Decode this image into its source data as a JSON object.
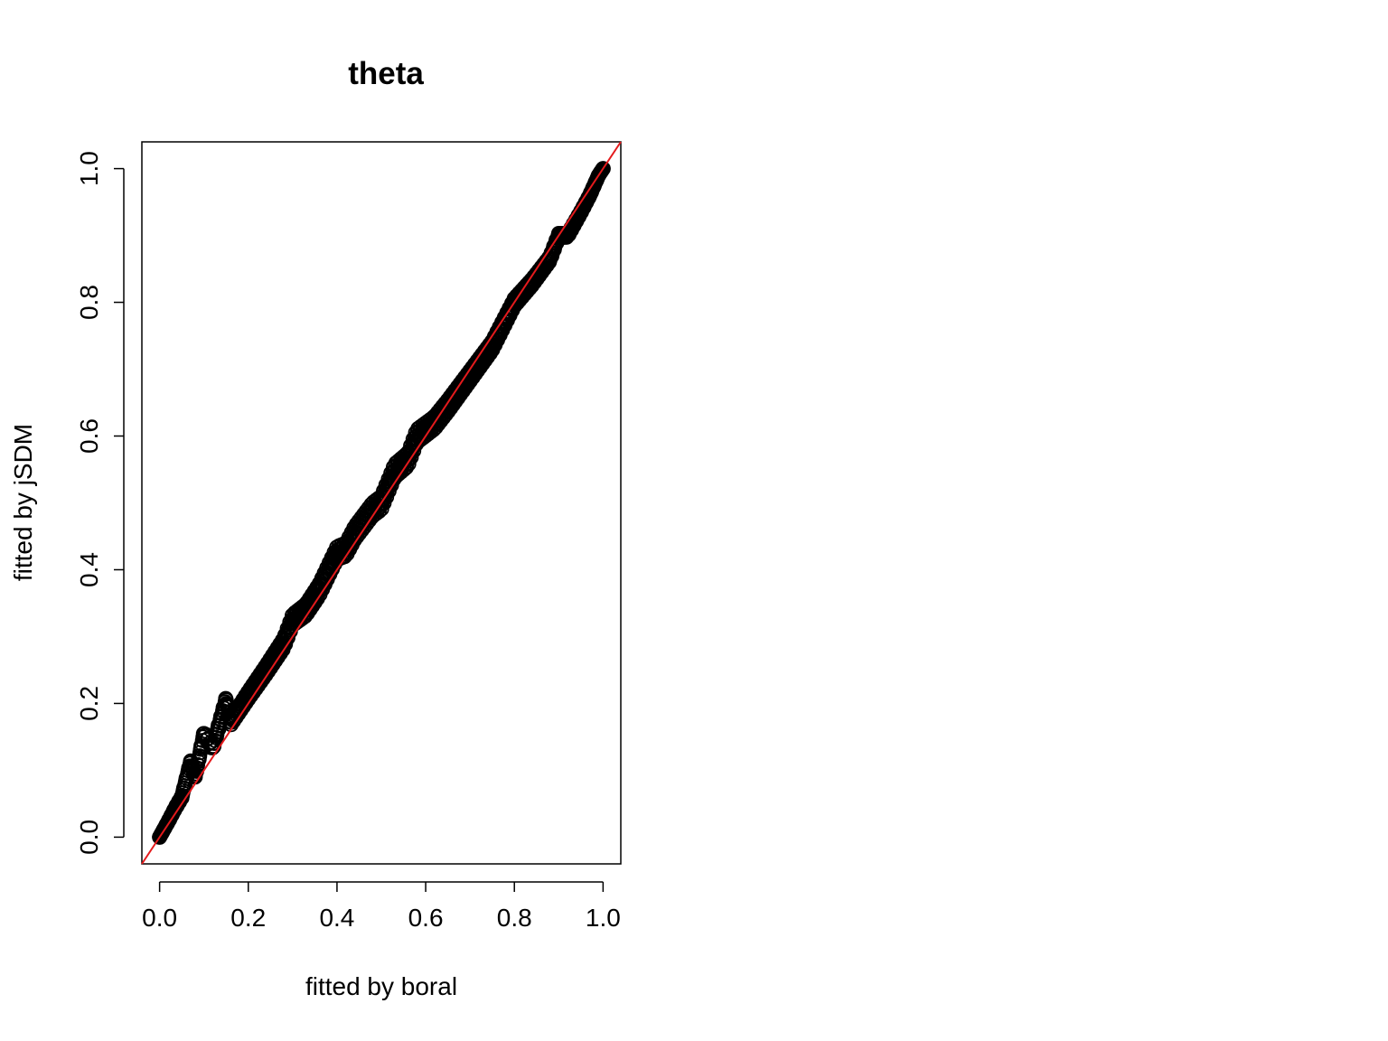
{
  "chart_data": {
    "type": "scatter",
    "title": "theta",
    "xlabel": "fitted by boral",
    "ylabel": "fitted by jSDM",
    "xlim": [
      -0.04,
      1.04
    ],
    "ylim": [
      -0.04,
      1.04
    ],
    "x_ticks": [
      0.0,
      0.2,
      0.4,
      0.6,
      0.8,
      1.0
    ],
    "y_ticks": [
      0.0,
      0.2,
      0.4,
      0.6,
      0.8,
      1.0
    ],
    "x_tick_labels": [
      "0.0",
      "0.2",
      "0.4",
      "0.6",
      "0.8",
      "1.0"
    ],
    "y_tick_labels": [
      "0.0",
      "0.2",
      "0.4",
      "0.6",
      "0.8",
      "1.0"
    ],
    "marker": "open-circle",
    "point_color": "#000000",
    "grid": false,
    "reference_line": {
      "type": "identity",
      "intercept": 0,
      "slope": 1,
      "color": "#e41a1c"
    },
    "series": [
      {
        "points": [
          [
            0.0,
            0.0
          ],
          [
            0.01,
            0.012
          ],
          [
            0.02,
            0.024
          ],
          [
            0.035,
            0.043
          ],
          [
            0.05,
            0.06
          ],
          [
            0.07,
            0.113
          ],
          [
            0.08,
            0.09
          ],
          [
            0.1,
            0.155
          ],
          [
            0.12,
            0.134
          ],
          [
            0.15,
            0.205
          ],
          [
            0.16,
            0.172
          ],
          [
            0.2,
            0.212
          ],
          [
            0.24,
            0.25
          ],
          [
            0.28,
            0.29
          ],
          [
            0.3,
            0.325
          ],
          [
            0.33,
            0.34
          ],
          [
            0.36,
            0.37
          ],
          [
            0.4,
            0.425
          ],
          [
            0.42,
            0.43
          ],
          [
            0.44,
            0.455
          ],
          [
            0.48,
            0.49
          ],
          [
            0.5,
            0.5
          ],
          [
            0.53,
            0.548
          ],
          [
            0.56,
            0.565
          ],
          [
            0.58,
            0.6
          ],
          [
            0.62,
            0.62
          ],
          [
            0.65,
            0.645
          ],
          [
            0.7,
            0.69
          ],
          [
            0.75,
            0.735
          ],
          [
            0.8,
            0.8
          ],
          [
            0.84,
            0.83
          ],
          [
            0.88,
            0.865
          ],
          [
            0.9,
            0.9
          ],
          [
            0.92,
            0.9
          ],
          [
            0.95,
            0.935
          ],
          [
            0.97,
            0.96
          ],
          [
            0.99,
            0.99
          ],
          [
            1.0,
            1.0
          ]
        ]
      }
    ]
  }
}
